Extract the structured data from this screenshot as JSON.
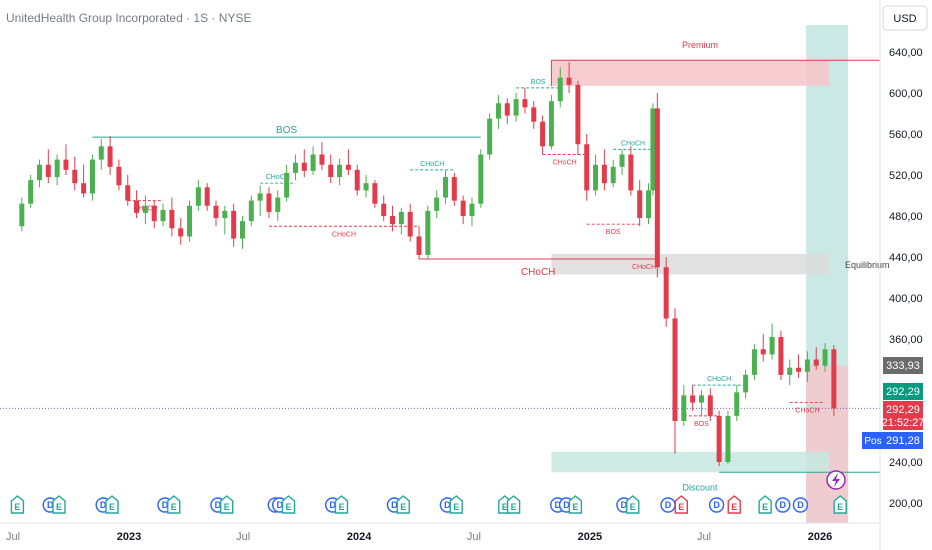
{
  "title": "UnitedHealth Group Incorporated · 1S · NYSE",
  "currency": "USD",
  "colors": {
    "up": "#26a69a",
    "up_body": "#4caf50",
    "down": "#e23c4c",
    "premium_fill": "#f7c4c9",
    "discount_fill": "#c6e8e1",
    "equilibrium_fill": "#dcdcdc",
    "highlight_fill": "#b3e0da",
    "last_price": "#e23c4c",
    "pos": "#2962ff",
    "grey_price": "#6b6b6b"
  },
  "price_labels": {
    "current_price": "333,93",
    "green_price": "292,29",
    "red_price": "292,29",
    "countdown": "21:52:27",
    "pos_label": "Pos",
    "pos_price": "291,28"
  },
  "zones": {
    "premium": "Premium",
    "equilibrium": "Equilibrium",
    "discount": "Discount"
  },
  "structure_labels": {
    "bos": "BOS",
    "choch": "CHoCH"
  },
  "chart_data": {
    "type": "candlestick",
    "title": "UnitedHealth Group Incorporated · 1S · NYSE",
    "y_axis_ticks": [
      {
        "value": 640,
        "label": "640,00"
      },
      {
        "value": 600,
        "label": "600,00"
      },
      {
        "value": 560,
        "label": "560,00"
      },
      {
        "value": 520,
        "label": "520,00"
      },
      {
        "value": 480,
        "label": "480,00"
      },
      {
        "value": 440,
        "label": "440,00"
      },
      {
        "value": 400,
        "label": "400,00"
      },
      {
        "value": 360,
        "label": "360,00"
      },
      {
        "value": 240,
        "label": "240,00"
      },
      {
        "value": 200,
        "label": "200,00"
      }
    ],
    "x_axis_ticks": [
      {
        "label": "Jul",
        "date": "2022-07-01",
        "year": false
      },
      {
        "label": "2023",
        "date": "2023-01-01",
        "year": true
      },
      {
        "label": "Jul",
        "date": "2023-07-01",
        "year": false
      },
      {
        "label": "2024",
        "date": "2024-01-01",
        "year": true
      },
      {
        "label": "Jul",
        "date": "2024-07-01",
        "year": false
      },
      {
        "label": "2025",
        "date": "2025-01-01",
        "year": true
      },
      {
        "label": "Jul",
        "date": "2025-07-01",
        "year": false
      },
      {
        "label": "2026",
        "date": "2026-01-01",
        "year": true
      }
    ],
    "ylim": [
      175,
      665
    ],
    "xlim": [
      "2022-07-01",
      "2026-03-01"
    ],
    "grid": false,
    "zones": [
      {
        "name": "Premium",
        "from_date": "2024-11-01",
        "top": 632,
        "bottom": 607
      },
      {
        "name": "Equilibrium",
        "from_date": "2024-11-01",
        "top": 443,
        "bottom": 423
      },
      {
        "name": "Discount",
        "from_date": "2024-11-01",
        "top": 250,
        "bottom": 230
      }
    ],
    "series": [
      {
        "date": "2022-07-15",
        "o": 470,
        "h": 498,
        "l": 465,
        "c": 492
      },
      {
        "date": "2022-07-29",
        "o": 492,
        "h": 520,
        "l": 488,
        "c": 515
      },
      {
        "date": "2022-08-12",
        "o": 515,
        "h": 535,
        "l": 508,
        "c": 530
      },
      {
        "date": "2022-08-26",
        "o": 530,
        "h": 545,
        "l": 512,
        "c": 518
      },
      {
        "date": "2022-09-09",
        "o": 518,
        "h": 540,
        "l": 510,
        "c": 535
      },
      {
        "date": "2022-09-23",
        "o": 535,
        "h": 550,
        "l": 520,
        "c": 525
      },
      {
        "date": "2022-10-07",
        "o": 525,
        "h": 538,
        "l": 505,
        "c": 512
      },
      {
        "date": "2022-10-21",
        "o": 512,
        "h": 530,
        "l": 498,
        "c": 502
      },
      {
        "date": "2022-11-04",
        "o": 502,
        "h": 540,
        "l": 495,
        "c": 535
      },
      {
        "date": "2022-11-18",
        "o": 535,
        "h": 555,
        "l": 525,
        "c": 548
      },
      {
        "date": "2022-12-02",
        "o": 548,
        "h": 558,
        "l": 520,
        "c": 528
      },
      {
        "date": "2022-12-16",
        "o": 528,
        "h": 535,
        "l": 505,
        "c": 510
      },
      {
        "date": "2022-12-30",
        "o": 510,
        "h": 520,
        "l": 490,
        "c": 495
      },
      {
        "date": "2023-01-13",
        "o": 495,
        "h": 505,
        "l": 478,
        "c": 483
      },
      {
        "date": "2023-01-27",
        "o": 483,
        "h": 500,
        "l": 472,
        "c": 490
      },
      {
        "date": "2023-02-10",
        "o": 490,
        "h": 495,
        "l": 468,
        "c": 475
      },
      {
        "date": "2023-02-24",
        "o": 475,
        "h": 492,
        "l": 470,
        "c": 486
      },
      {
        "date": "2023-03-10",
        "o": 486,
        "h": 498,
        "l": 460,
        "c": 468
      },
      {
        "date": "2023-03-24",
        "o": 468,
        "h": 478,
        "l": 452,
        "c": 460
      },
      {
        "date": "2023-04-07",
        "o": 460,
        "h": 495,
        "l": 455,
        "c": 490
      },
      {
        "date": "2023-04-21",
        "o": 490,
        "h": 515,
        "l": 485,
        "c": 508
      },
      {
        "date": "2023-05-05",
        "o": 508,
        "h": 512,
        "l": 485,
        "c": 490
      },
      {
        "date": "2023-05-19",
        "o": 490,
        "h": 495,
        "l": 470,
        "c": 478
      },
      {
        "date": "2023-06-02",
        "o": 478,
        "h": 490,
        "l": 462,
        "c": 485
      },
      {
        "date": "2023-06-16",
        "o": 485,
        "h": 492,
        "l": 450,
        "c": 458
      },
      {
        "date": "2023-06-30",
        "o": 458,
        "h": 480,
        "l": 448,
        "c": 475
      },
      {
        "date": "2023-07-14",
        "o": 475,
        "h": 500,
        "l": 470,
        "c": 495
      },
      {
        "date": "2023-07-28",
        "o": 495,
        "h": 510,
        "l": 480,
        "c": 502
      },
      {
        "date": "2023-08-11",
        "o": 502,
        "h": 508,
        "l": 478,
        "c": 484
      },
      {
        "date": "2023-08-25",
        "o": 484,
        "h": 505,
        "l": 475,
        "c": 498
      },
      {
        "date": "2023-09-08",
        "o": 498,
        "h": 530,
        "l": 494,
        "c": 522
      },
      {
        "date": "2023-09-22",
        "o": 522,
        "h": 540,
        "l": 515,
        "c": 532
      },
      {
        "date": "2023-10-06",
        "o": 532,
        "h": 545,
        "l": 518,
        "c": 524
      },
      {
        "date": "2023-10-20",
        "o": 524,
        "h": 548,
        "l": 520,
        "c": 540
      },
      {
        "date": "2023-11-03",
        "o": 540,
        "h": 552,
        "l": 525,
        "c": 530
      },
      {
        "date": "2023-11-17",
        "o": 530,
        "h": 540,
        "l": 512,
        "c": 518
      },
      {
        "date": "2023-12-01",
        "o": 518,
        "h": 536,
        "l": 510,
        "c": 530
      },
      {
        "date": "2023-12-15",
        "o": 530,
        "h": 545,
        "l": 520,
        "c": 525
      },
      {
        "date": "2023-12-29",
        "o": 525,
        "h": 530,
        "l": 500,
        "c": 505
      },
      {
        "date": "2024-01-12",
        "o": 505,
        "h": 520,
        "l": 498,
        "c": 512
      },
      {
        "date": "2024-01-26",
        "o": 512,
        "h": 515,
        "l": 488,
        "c": 492
      },
      {
        "date": "2024-02-09",
        "o": 492,
        "h": 500,
        "l": 475,
        "c": 480
      },
      {
        "date": "2024-02-23",
        "o": 480,
        "h": 490,
        "l": 465,
        "c": 472
      },
      {
        "date": "2024-03-08",
        "o": 472,
        "h": 488,
        "l": 462,
        "c": 484
      },
      {
        "date": "2024-03-22",
        "o": 484,
        "h": 492,
        "l": 455,
        "c": 460
      },
      {
        "date": "2024-04-05",
        "o": 460,
        "h": 470,
        "l": 438,
        "c": 442
      },
      {
        "date": "2024-04-19",
        "o": 442,
        "h": 490,
        "l": 438,
        "c": 485
      },
      {
        "date": "2024-05-03",
        "o": 485,
        "h": 505,
        "l": 478,
        "c": 498
      },
      {
        "date": "2024-05-17",
        "o": 498,
        "h": 525,
        "l": 492,
        "c": 518
      },
      {
        "date": "2024-05-31",
        "o": 518,
        "h": 522,
        "l": 490,
        "c": 495
      },
      {
        "date": "2024-06-14",
        "o": 495,
        "h": 500,
        "l": 472,
        "c": 480
      },
      {
        "date": "2024-06-28",
        "o": 480,
        "h": 498,
        "l": 470,
        "c": 492
      },
      {
        "date": "2024-07-12",
        "o": 492,
        "h": 545,
        "l": 488,
        "c": 540
      },
      {
        "date": "2024-07-26",
        "o": 540,
        "h": 580,
        "l": 535,
        "c": 575
      },
      {
        "date": "2024-08-09",
        "o": 575,
        "h": 598,
        "l": 565,
        "c": 590
      },
      {
        "date": "2024-08-23",
        "o": 590,
        "h": 595,
        "l": 570,
        "c": 578
      },
      {
        "date": "2024-09-06",
        "o": 578,
        "h": 600,
        "l": 572,
        "c": 594
      },
      {
        "date": "2024-09-20",
        "o": 594,
        "h": 605,
        "l": 580,
        "c": 586
      },
      {
        "date": "2024-10-04",
        "o": 586,
        "h": 592,
        "l": 565,
        "c": 572
      },
      {
        "date": "2024-10-18",
        "o": 572,
        "h": 578,
        "l": 540,
        "c": 548
      },
      {
        "date": "2024-11-01",
        "o": 548,
        "h": 598,
        "l": 545,
        "c": 592
      },
      {
        "date": "2024-11-15",
        "o": 592,
        "h": 625,
        "l": 586,
        "c": 615
      },
      {
        "date": "2024-11-29",
        "o": 615,
        "h": 630,
        "l": 600,
        "c": 608
      },
      {
        "date": "2024-12-13",
        "o": 608,
        "h": 612,
        "l": 540,
        "c": 550
      },
      {
        "date": "2024-12-27",
        "o": 550,
        "h": 560,
        "l": 495,
        "c": 505
      },
      {
        "date": "2025-01-10",
        "o": 505,
        "h": 540,
        "l": 500,
        "c": 530
      },
      {
        "date": "2025-01-24",
        "o": 530,
        "h": 545,
        "l": 505,
        "c": 512
      },
      {
        "date": "2025-02-07",
        "o": 512,
        "h": 535,
        "l": 508,
        "c": 528
      },
      {
        "date": "2025-02-21",
        "o": 528,
        "h": 545,
        "l": 520,
        "c": 540
      },
      {
        "date": "2025-03-07",
        "o": 540,
        "h": 548,
        "l": 500,
        "c": 505
      },
      {
        "date": "2025-03-21",
        "o": 505,
        "h": 515,
        "l": 470,
        "c": 478
      },
      {
        "date": "2025-04-04",
        "o": 478,
        "h": 512,
        "l": 472,
        "c": 505
      },
      {
        "date": "2025-04-11",
        "o": 505,
        "h": 590,
        "l": 500,
        "c": 585
      },
      {
        "date": "2025-04-18",
        "o": 585,
        "h": 600,
        "l": 420,
        "c": 430
      },
      {
        "date": "2025-05-02",
        "o": 430,
        "h": 440,
        "l": 372,
        "c": 380
      },
      {
        "date": "2025-05-16",
        "o": 380,
        "h": 390,
        "l": 248,
        "c": 280
      },
      {
        "date": "2025-05-30",
        "o": 280,
        "h": 315,
        "l": 275,
        "c": 305
      },
      {
        "date": "2025-06-13",
        "o": 305,
        "h": 315,
        "l": 290,
        "c": 298
      },
      {
        "date": "2025-06-27",
        "o": 298,
        "h": 310,
        "l": 285,
        "c": 305
      },
      {
        "date": "2025-07-11",
        "o": 305,
        "h": 312,
        "l": 280,
        "c": 285
      },
      {
        "date": "2025-07-25",
        "o": 285,
        "h": 290,
        "l": 236,
        "c": 240
      },
      {
        "date": "2025-08-08",
        "o": 240,
        "h": 290,
        "l": 238,
        "c": 285
      },
      {
        "date": "2025-08-22",
        "o": 285,
        "h": 315,
        "l": 280,
        "c": 308
      },
      {
        "date": "2025-09-05",
        "o": 308,
        "h": 330,
        "l": 302,
        "c": 325
      },
      {
        "date": "2025-09-19",
        "o": 325,
        "h": 355,
        "l": 320,
        "c": 350
      },
      {
        "date": "2025-10-03",
        "o": 350,
        "h": 365,
        "l": 338,
        "c": 345
      },
      {
        "date": "2025-10-17",
        "o": 345,
        "h": 375,
        "l": 340,
        "c": 362
      },
      {
        "date": "2025-10-31",
        "o": 362,
        "h": 368,
        "l": 320,
        "c": 325
      },
      {
        "date": "2025-11-14",
        "o": 325,
        "h": 340,
        "l": 315,
        "c": 332
      },
      {
        "date": "2025-11-28",
        "o": 332,
        "h": 345,
        "l": 322,
        "c": 328
      },
      {
        "date": "2025-12-12",
        "o": 328,
        "h": 348,
        "l": 318,
        "c": 340
      },
      {
        "date": "2025-12-26",
        "o": 340,
        "h": 352,
        "l": 330,
        "c": 334
      },
      {
        "date": "2026-01-09",
        "o": 334,
        "h": 356,
        "l": 328,
        "c": 350
      },
      {
        "date": "2026-01-23",
        "o": 350,
        "h": 354,
        "l": 285,
        "c": 292.29
      }
    ],
    "structure": [
      {
        "type": "BOS",
        "color": "up",
        "style": "solid",
        "y": 557,
        "from": "2022-11-04",
        "to": "2024-07-12"
      },
      {
        "type": "BOS",
        "color": "up",
        "style": "dashed",
        "y": 605,
        "from": "2024-09-06",
        "to": "2024-11-15"
      },
      {
        "type": "CHoCH",
        "color": "down",
        "style": "dashed",
        "y": 495,
        "from": "2022-12-30",
        "to": "2023-02-24"
      },
      {
        "type": "CHoCH",
        "color": "up",
        "style": "dashed",
        "y": 512,
        "from": "2023-07-28",
        "to": "2023-09-22"
      },
      {
        "type": "CHoCH",
        "color": "down",
        "style": "dashed",
        "y": 470,
        "from": "2023-08-11",
        "to": "2024-04-05"
      },
      {
        "type": "CHoCH",
        "color": "up",
        "style": "dashed",
        "y": 525,
        "from": "2024-03-22",
        "to": "2024-05-31"
      },
      {
        "type": "CHoCH",
        "color": "down",
        "style": "solid",
        "y": 438,
        "from": "2024-04-05",
        "to": "2025-04-18"
      },
      {
        "type": "CHoCH",
        "color": "down",
        "style": "dashed",
        "y": 540,
        "from": "2024-10-18",
        "to": "2024-12-27"
      },
      {
        "type": "BOS",
        "color": "down",
        "style": "dashed",
        "y": 472,
        "from": "2024-12-27",
        "to": "2025-03-21"
      },
      {
        "type": "CHoCH",
        "color": "up",
        "style": "dashed",
        "y": 545,
        "from": "2025-02-07",
        "to": "2025-04-11"
      },
      {
        "type": "CHoCH",
        "color": "down",
        "style": "dashed",
        "y": 438,
        "from": "2025-03-07",
        "to": "2025-04-18"
      },
      {
        "type": "BOS",
        "color": "down",
        "style": "dashed",
        "y": 285,
        "from": "2025-05-30",
        "to": "2025-07-25"
      },
      {
        "type": "CHoCH",
        "color": "up",
        "style": "dashed",
        "y": 315,
        "from": "2025-06-13",
        "to": "2025-09-05"
      },
      {
        "type": "CHoCH",
        "color": "down",
        "style": "dashed",
        "y": 298,
        "from": "2025-11-14",
        "to": "2026-01-09"
      }
    ],
    "events": [
      {
        "date": "2022-07-08",
        "kind": "E",
        "color": "up"
      },
      {
        "date": "2022-08-29",
        "kind": "D",
        "color": "blue"
      },
      {
        "date": "2022-09-12",
        "kind": "E",
        "color": "up"
      },
      {
        "date": "2022-11-21",
        "kind": "D",
        "color": "blue"
      },
      {
        "date": "2022-12-05",
        "kind": "E",
        "color": "up"
      },
      {
        "date": "2023-02-27",
        "kind": "D",
        "color": "blue"
      },
      {
        "date": "2023-03-13",
        "kind": "E",
        "color": "up"
      },
      {
        "date": "2023-05-22",
        "kind": "D",
        "color": "blue"
      },
      {
        "date": "2023-06-05",
        "kind": "E",
        "color": "up"
      },
      {
        "date": "2023-08-21",
        "kind": "D",
        "color": "blue"
      },
      {
        "date": "2023-08-28",
        "kind": "D",
        "color": "blue"
      },
      {
        "date": "2023-09-11",
        "kind": "E",
        "color": "up"
      },
      {
        "date": "2023-11-20",
        "kind": "D",
        "color": "blue"
      },
      {
        "date": "2023-12-04",
        "kind": "E",
        "color": "up"
      },
      {
        "date": "2024-02-26",
        "kind": "D",
        "color": "blue"
      },
      {
        "date": "2024-03-11",
        "kind": "E",
        "color": "up"
      },
      {
        "date": "2024-05-20",
        "kind": "D",
        "color": "blue"
      },
      {
        "date": "2024-06-03",
        "kind": "E",
        "color": "up"
      },
      {
        "date": "2024-08-19",
        "kind": "E",
        "color": "up"
      },
      {
        "date": "2024-09-02",
        "kind": "E",
        "color": "up"
      },
      {
        "date": "2024-11-11",
        "kind": "D",
        "color": "blue"
      },
      {
        "date": "2024-11-25",
        "kind": "D",
        "color": "blue"
      },
      {
        "date": "2024-12-09",
        "kind": "E",
        "color": "up"
      },
      {
        "date": "2025-02-24",
        "kind": "D",
        "color": "blue"
      },
      {
        "date": "2025-03-10",
        "kind": "E",
        "color": "up"
      },
      {
        "date": "2025-05-05",
        "kind": "D",
        "color": "blue"
      },
      {
        "date": "2025-05-26",
        "kind": "E",
        "color": "down"
      },
      {
        "date": "2025-07-21",
        "kind": "D",
        "color": "blue"
      },
      {
        "date": "2025-08-18",
        "kind": "E",
        "color": "down"
      },
      {
        "date": "2025-10-06",
        "kind": "E",
        "color": "up"
      },
      {
        "date": "2025-11-03",
        "kind": "D",
        "color": "blue"
      },
      {
        "date": "2025-12-01",
        "kind": "D",
        "color": "blue"
      },
      {
        "date": "2026-02-02",
        "kind": "E",
        "color": "up"
      }
    ]
  }
}
